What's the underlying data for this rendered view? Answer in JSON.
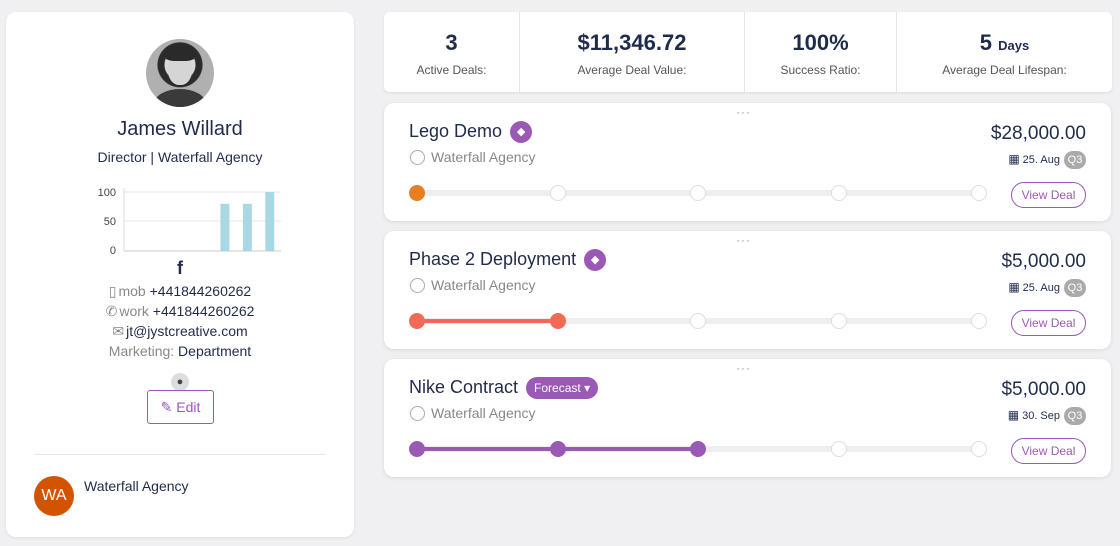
{
  "profile": {
    "name": "James Willard",
    "title": "Director | Waterfall Agency",
    "mini_chart": {
      "type": "bar",
      "y_ticks": [
        "100",
        "50",
        "0"
      ],
      "ylim": [
        0,
        100
      ],
      "values": [
        0,
        0,
        0,
        0,
        80,
        80,
        100
      ]
    },
    "facebook_glyph": "f",
    "mobile_label": "mob",
    "mobile": "+441844260262",
    "work_label": "work",
    "work": "+441844260262",
    "email": "jt@jystcreative.com",
    "department_label": "Marketing:",
    "department": "Department",
    "edit_label": "Edit",
    "org_initials": "WA",
    "org_name": "Waterfall Agency"
  },
  "stats": [
    {
      "value": "3",
      "unit": "",
      "label": "Active Deals:"
    },
    {
      "value": "$11,346.72",
      "unit": "",
      "label": "Average Deal Value:"
    },
    {
      "value": "100%",
      "unit": "",
      "label": "Success Ratio:"
    },
    {
      "value": "5",
      "unit": "Days",
      "label": "Average Deal Lifespan:"
    }
  ],
  "deals": [
    {
      "name": "Lego Demo",
      "badge": "",
      "company": "Waterfall Agency",
      "amount": "$28,000.00",
      "date": "25. Aug",
      "quarter": "Q3",
      "view_label": "View Deal",
      "stages_total": 5,
      "stages_done": 1,
      "color": "#e67e22"
    },
    {
      "name": "Phase 2 Deployment",
      "badge": "",
      "company": "Waterfall Agency",
      "amount": "$5,000.00",
      "date": "25. Aug",
      "quarter": "Q3",
      "view_label": "View Deal",
      "stages_total": 5,
      "stages_done": 2,
      "color": "#f06a55"
    },
    {
      "name": "Nike Contract",
      "badge": "Forecast",
      "company": "Waterfall Agency",
      "amount": "$5,000.00",
      "date": "30. Sep",
      "quarter": "Q3",
      "view_label": "View Deal",
      "stages_total": 5,
      "stages_done": 3,
      "color": "#9b59b6"
    }
  ],
  "colors": {
    "accent": "#9b59b6",
    "org_avatar": "#d35400",
    "bar": "#a8d8e4"
  }
}
